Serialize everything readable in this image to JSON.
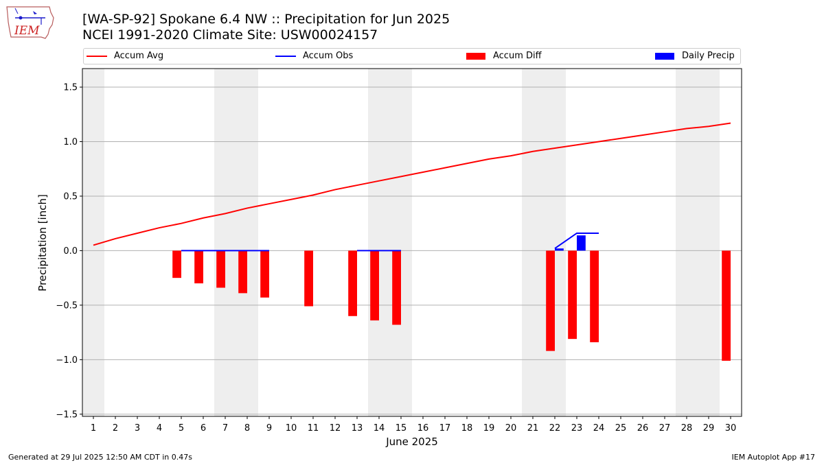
{
  "header": {
    "title_line1": "[WA-SP-92] Spokane 6.4 NW :: Precipitation for Jun 2025",
    "title_line2": "NCEI 1991-2020 Climate Site: USW00024157"
  },
  "logo": {
    "text": "IEM",
    "icon": "iem-iowa-logo"
  },
  "footer": {
    "generated": "Generated at 29 Jul 2025 12:50 AM CDT in 0.47s",
    "app": "IEM Autoplot App #17"
  },
  "colors": {
    "accum_avg": "#ff0000",
    "accum_obs": "#0000ff",
    "accum_diff": "#ff0000",
    "daily_precip": "#0000ff",
    "weekend_shade": "#eeeeee",
    "grid": "#b0b0b0"
  },
  "chart_data": {
    "type": "bar",
    "xlabel": "June 2025",
    "ylabel": "Precipitation [inch]",
    "xlim": [
      0.5,
      30.5
    ],
    "ylim": [
      -1.52,
      1.67
    ],
    "yticks": [
      -1.5,
      -1.0,
      -0.5,
      0.0,
      0.5,
      1.0,
      1.5
    ],
    "ytick_labels": [
      "−1.5",
      "−1.0",
      "−0.5",
      "0.0",
      "0.5",
      "1.0",
      "1.5"
    ],
    "x": [
      1,
      2,
      3,
      4,
      5,
      6,
      7,
      8,
      9,
      10,
      11,
      12,
      13,
      14,
      15,
      16,
      17,
      18,
      19,
      20,
      21,
      22,
      23,
      24,
      25,
      26,
      27,
      28,
      29,
      30
    ],
    "xtick_labels": [
      "1",
      "2",
      "3",
      "4",
      "5",
      "6",
      "7",
      "8",
      "9",
      "10",
      "11",
      "12",
      "13",
      "14",
      "15",
      "16",
      "17",
      "18",
      "19",
      "20",
      "21",
      "22",
      "23",
      "24",
      "25",
      "26",
      "27",
      "28",
      "29",
      "30"
    ],
    "grid": "y",
    "legend_position": "top",
    "weekend_spans": [
      [
        0.5,
        1.5
      ],
      [
        6.5,
        8.5
      ],
      [
        13.5,
        15.5
      ],
      [
        20.5,
        22.5
      ],
      [
        27.5,
        29.5
      ]
    ],
    "series": [
      {
        "name": "Accum Avg",
        "kind": "line",
        "x": [
          1,
          2,
          3,
          4,
          5,
          6,
          7,
          8,
          9,
          10,
          11,
          12,
          13,
          14,
          15,
          16,
          17,
          18,
          19,
          20,
          21,
          22,
          23,
          24,
          25,
          26,
          27,
          28,
          29,
          30
        ],
        "values": [
          0.05,
          0.11,
          0.16,
          0.21,
          0.25,
          0.3,
          0.34,
          0.39,
          0.43,
          0.47,
          0.51,
          0.56,
          0.6,
          0.64,
          0.68,
          0.72,
          0.76,
          0.8,
          0.84,
          0.87,
          0.91,
          0.94,
          0.97,
          1.0,
          1.03,
          1.06,
          1.09,
          1.12,
          1.14,
          1.17
        ]
      },
      {
        "name": "Accum Obs",
        "kind": "step",
        "segments": [
          {
            "x": [
              5,
              6,
              7,
              8,
              9
            ],
            "values": [
              0.0,
              0.0,
              0.0,
              0.0,
              0.0
            ]
          },
          {
            "x": [
              13,
              14,
              15
            ],
            "values": [
              0.0,
              0.0,
              0.0
            ]
          },
          {
            "x": [
              22,
              23,
              24
            ],
            "values": [
              0.02,
              0.16,
              0.16
            ]
          }
        ]
      },
      {
        "name": "Accum Diff",
        "kind": "bar",
        "x": [
          5,
          6,
          7,
          8,
          9,
          11,
          13,
          14,
          15,
          22,
          23,
          24,
          30
        ],
        "values": [
          -0.25,
          -0.3,
          -0.34,
          -0.39,
          -0.43,
          -0.51,
          -0.6,
          -0.64,
          -0.68,
          -0.92,
          -0.81,
          -0.84,
          -1.01
        ]
      },
      {
        "name": "Daily Precip",
        "kind": "bar",
        "x": [
          22,
          23
        ],
        "values": [
          0.02,
          0.14
        ]
      }
    ]
  }
}
